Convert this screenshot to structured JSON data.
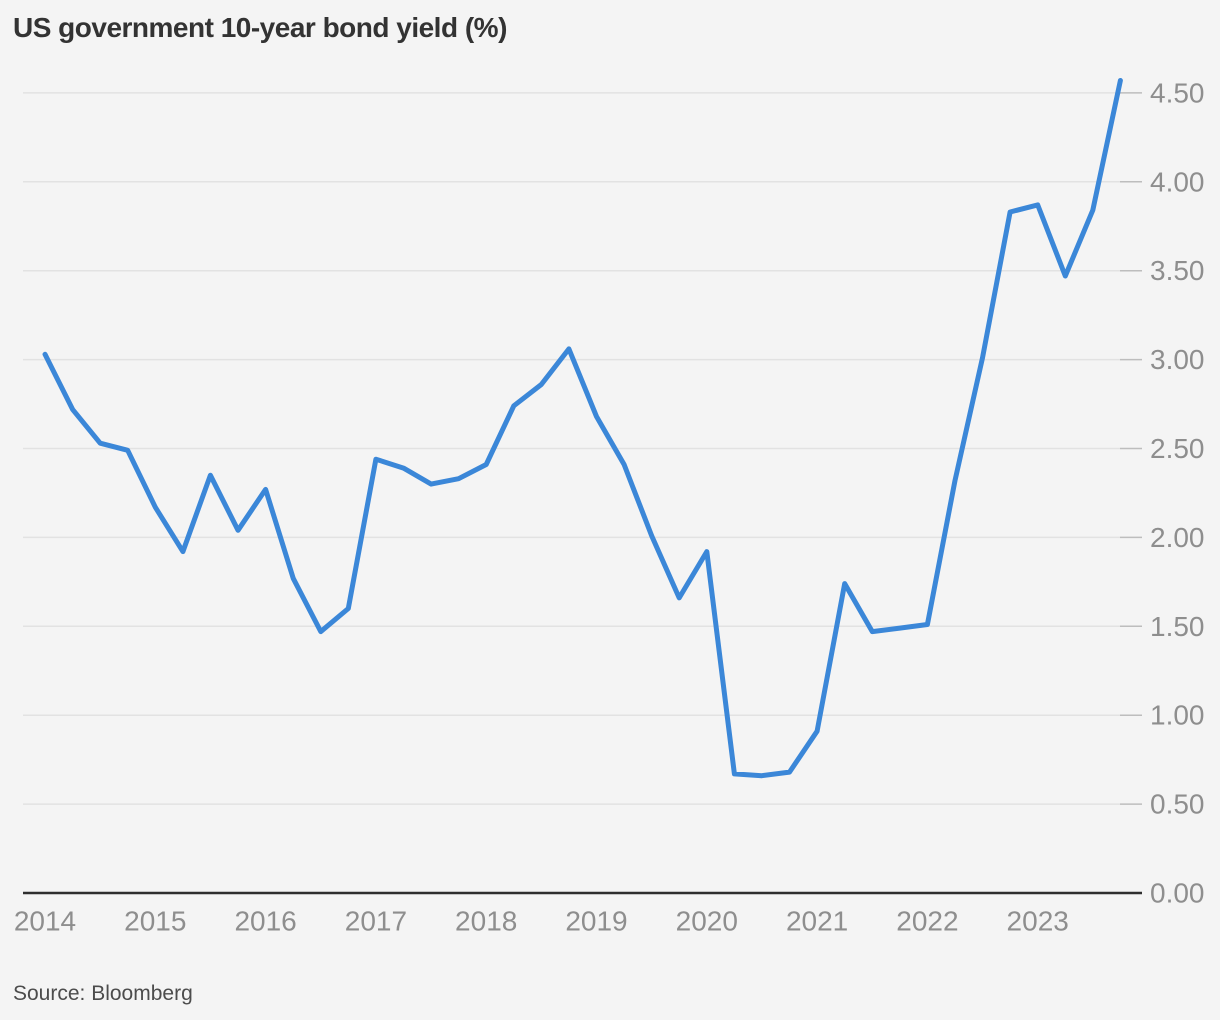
{
  "title": "US government 10-year bond yield (%)",
  "source": "Source: Bloomberg",
  "colors": {
    "background": "#f4f4f4",
    "line": "#3b87d8",
    "grid": "#e2e2e2",
    "tick": "#bdbdbd",
    "axis": "#2e2e2e",
    "title_text": "#333333",
    "axis_label_text": "#8e8e8e",
    "source_text": "#4c4c4c"
  },
  "chart_data": {
    "type": "line",
    "title": "US government 10-year bond yield (%)",
    "source": "Source: Bloomberg",
    "xlabel": "",
    "ylabel": "",
    "x_tick_labels": [
      "2014",
      "2015",
      "2016",
      "2017",
      "2018",
      "2019",
      "2020",
      "2021",
      "2022",
      "2023"
    ],
    "y_tick_labels": [
      "0.00",
      "0.50",
      "1.00",
      "1.50",
      "2.00",
      "2.50",
      "3.00",
      "3.50",
      "4.00",
      "4.50"
    ],
    "ylim": [
      0,
      4.75
    ],
    "x_start_year": 2014,
    "points_per_year": 4,
    "grid": true,
    "legend": "none",
    "y_axis_side": "right",
    "series": [
      {
        "name": "US government 10-year bond yield (%)",
        "values": [
          3.03,
          2.72,
          2.53,
          2.49,
          2.17,
          1.92,
          2.35,
          2.04,
          2.27,
          1.77,
          1.47,
          1.6,
          2.44,
          2.39,
          2.3,
          2.33,
          2.41,
          2.74,
          2.86,
          3.06,
          2.68,
          2.41,
          2.01,
          1.66,
          1.92,
          0.67,
          0.66,
          0.68,
          0.91,
          1.74,
          1.47,
          1.49,
          1.51,
          2.32,
          3.01,
          3.83,
          3.87,
          3.47,
          3.84,
          4.57
        ]
      }
    ]
  }
}
